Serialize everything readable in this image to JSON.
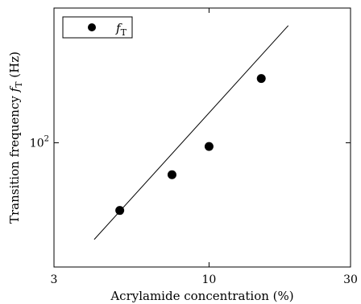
{
  "chart_data": {
    "type": "scatter",
    "xlabel": "Acrylamide concentration (%)",
    "ylabel": "Transition frequency",
    "ylabel_symbol": "f",
    "ylabel_subscript": "T",
    "ylabel_unit": "(Hz)",
    "x_scale": "log",
    "y_scale": "log",
    "xlim": [
      3,
      30
    ],
    "ylim": [
      25,
      450
    ],
    "x_ticks": [
      3,
      10,
      30
    ],
    "x_tick_labels": [
      "3",
      "10",
      "30"
    ],
    "y_ticks": [
      100
    ],
    "y_tick_labels": [
      "10",
      "2"
    ],
    "grid": false,
    "legend_position": "top-left",
    "series": [
      {
        "name_symbol": "f",
        "name_subscript": "T",
        "marker": "circle",
        "color": "#000000",
        "x": [
          5,
          7.5,
          10,
          15
        ],
        "y": [
          47,
          70,
          96,
          205
        ]
      }
    ],
    "fit_line": {
      "color": "#000000",
      "x": [
        4.1,
        18.5
      ],
      "y": [
        34,
        370
      ]
    }
  }
}
